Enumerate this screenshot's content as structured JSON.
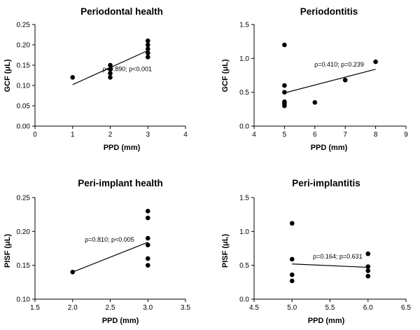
{
  "chart_data": [
    {
      "type": "scatter",
      "title": "Periodontal health",
      "xlabel": "PPD (mm)",
      "ylabel": "GCF (μL)",
      "xlim": [
        0,
        4
      ],
      "ylim": [
        0,
        0.25
      ],
      "xticks": [
        0,
        1,
        2,
        3,
        4
      ],
      "yticks": [
        0.0,
        0.05,
        0.1,
        0.15,
        0.2,
        0.25
      ],
      "xtick_labels": [
        "0",
        "1",
        "2",
        "3",
        "4"
      ],
      "ytick_labels": [
        "0.00",
        "0.05",
        "0.10",
        "0.15",
        "0.20",
        "0.25"
      ],
      "points": [
        [
          1,
          0.12
        ],
        [
          2,
          0.12
        ],
        [
          2,
          0.13
        ],
        [
          2,
          0.14
        ],
        [
          2,
          0.15
        ],
        [
          3,
          0.17
        ],
        [
          3,
          0.18
        ],
        [
          3,
          0.19
        ],
        [
          3,
          0.2
        ],
        [
          3,
          0.21
        ]
      ],
      "fit_line": [
        [
          1,
          0.102
        ],
        [
          3,
          0.186
        ]
      ],
      "annotation": {
        "text": "ρ=0.890; p<0.001",
        "x": 2.45,
        "y": 0.135
      },
      "grid": false
    },
    {
      "type": "scatter",
      "title": "Periodontitis",
      "xlabel": "PPD (mm)",
      "ylabel": "GCF (μL)",
      "xlim": [
        4,
        9
      ],
      "ylim": [
        0,
        1.5
      ],
      "xticks": [
        4,
        5,
        6,
        7,
        8,
        9
      ],
      "yticks": [
        0.0,
        0.5,
        1.0,
        1.5
      ],
      "xtick_labels": [
        "4",
        "5",
        "6",
        "7",
        "8",
        "9"
      ],
      "ytick_labels": [
        "0.0",
        "0.5",
        "1.0",
        "1.5"
      ],
      "points": [
        [
          5,
          1.2
        ],
        [
          5,
          0.6
        ],
        [
          5,
          0.5
        ],
        [
          5,
          0.36
        ],
        [
          5,
          0.33
        ],
        [
          5,
          0.3
        ],
        [
          6,
          0.35
        ],
        [
          7,
          0.68
        ],
        [
          8,
          0.95
        ]
      ],
      "fit_line": [
        [
          5,
          0.49
        ],
        [
          8,
          0.84
        ]
      ],
      "annotation": {
        "text": "ρ=0.410; p=0.239",
        "x": 6.8,
        "y": 0.88
      },
      "grid": false
    },
    {
      "type": "scatter",
      "title": "Peri-implant health",
      "xlabel": "PPD (mm)",
      "ylabel": "PISF (μL)",
      "xlim": [
        1.5,
        3.5
      ],
      "ylim": [
        0.1,
        0.25
      ],
      "xticks": [
        1.5,
        2.0,
        2.5,
        3.0,
        3.5
      ],
      "yticks": [
        0.1,
        0.15,
        0.2,
        0.25
      ],
      "xtick_labels": [
        "1.5",
        "2.0",
        "2.5",
        "3.0",
        "3.5"
      ],
      "ytick_labels": [
        "0.10",
        "0.15",
        "0.20",
        "0.25"
      ],
      "points": [
        [
          2,
          0.14
        ],
        [
          3,
          0.23
        ],
        [
          3,
          0.22
        ],
        [
          3,
          0.19
        ],
        [
          3,
          0.18
        ],
        [
          3,
          0.16
        ],
        [
          3,
          0.15
        ]
      ],
      "fit_line": [
        [
          2,
          0.14
        ],
        [
          3,
          0.184
        ]
      ],
      "annotation": {
        "text": "ρ=0.810; p<0.005",
        "x": 2.49,
        "y": 0.185
      },
      "grid": false
    },
    {
      "type": "scatter",
      "title": "Peri-implantitis",
      "xlabel": "PPD (mm)",
      "ylabel": "PISF (μL)",
      "xlim": [
        4.5,
        6.5
      ],
      "ylim": [
        0,
        1.5
      ],
      "xticks": [
        4.5,
        5.0,
        5.5,
        6.0,
        6.5
      ],
      "yticks": [
        0.0,
        0.5,
        1.0,
        1.5
      ],
      "xtick_labels": [
        "4.5",
        "5.0",
        "5.5",
        "6.0",
        "6.5"
      ],
      "ytick_labels": [
        "0.0",
        "0.5",
        "1.0",
        "1.5"
      ],
      "points": [
        [
          5,
          1.12
        ],
        [
          5,
          0.59
        ],
        [
          5,
          0.36
        ],
        [
          5,
          0.27
        ],
        [
          6,
          0.67
        ],
        [
          6,
          0.48
        ],
        [
          6,
          0.42
        ],
        [
          6,
          0.34
        ]
      ],
      "fit_line": [
        [
          5,
          0.52
        ],
        [
          6,
          0.47
        ]
      ],
      "annotation": {
        "text": "ρ=0.164; p=0.631",
        "x": 5.6,
        "y": 0.6
      },
      "grid": false
    }
  ]
}
